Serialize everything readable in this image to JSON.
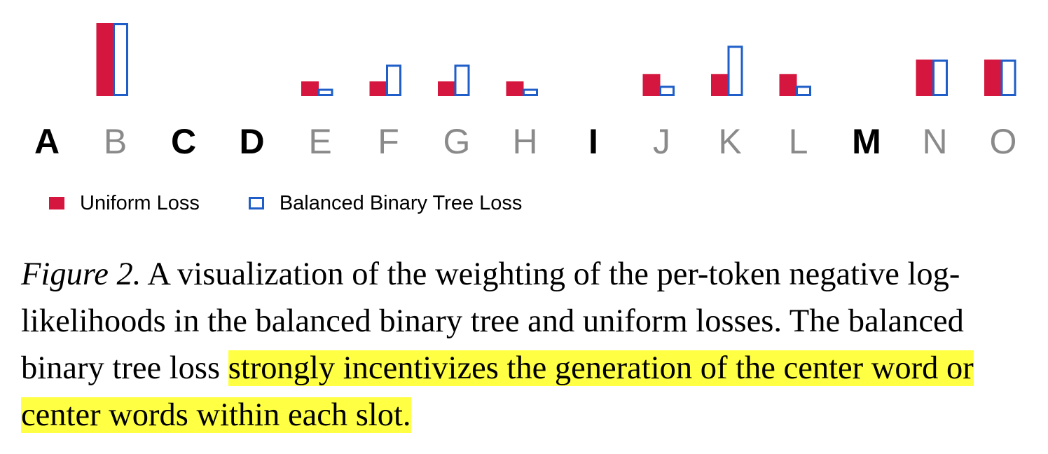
{
  "chart_data": {
    "type": "bar",
    "categories": [
      "A",
      "B",
      "C",
      "D",
      "E",
      "F",
      "G",
      "H",
      "I",
      "J",
      "K",
      "L",
      "M",
      "N",
      "O"
    ],
    "category_emphasis": [
      "bold",
      "normal",
      "bold",
      "bold",
      "normal",
      "normal",
      "normal",
      "normal",
      "bold",
      "normal",
      "normal",
      "normal",
      "bold",
      "normal",
      "normal"
    ],
    "series": [
      {
        "name": "Uniform Loss",
        "values": [
          0,
          1.0,
          0,
          0,
          0.2,
          0.2,
          0.2,
          0.2,
          0,
          0.3,
          0.3,
          0.3,
          0,
          0.5,
          0.5
        ],
        "color": "#d5173f",
        "style": "filled"
      },
      {
        "name": "Balanced Binary Tree Loss",
        "values": [
          0,
          1.0,
          0,
          0,
          0.1,
          0.43,
          0.43,
          0.1,
          0,
          0.14,
          0.69,
          0.14,
          0,
          0.5,
          0.5
        ],
        "color": "#1f5ec8",
        "style": "outline"
      }
    ],
    "ylim": [
      0,
      1
    ],
    "title": "",
    "xlabel": "",
    "ylabel": "",
    "legend_position": "bottom-left",
    "tick_colors": {
      "bold": "#000000",
      "normal": "#8a8a8a"
    }
  },
  "caption": {
    "label": "Figure 2.",
    "text": "A visualization of the weighting of the per-token negative log-likelihoods in the balanced binary tree and uniform losses. The balanced binary tree loss",
    "highlighted": "strongly incentivizes the generation of the center word or center words within each slot.",
    "highlight_color": "#ffff44"
  }
}
